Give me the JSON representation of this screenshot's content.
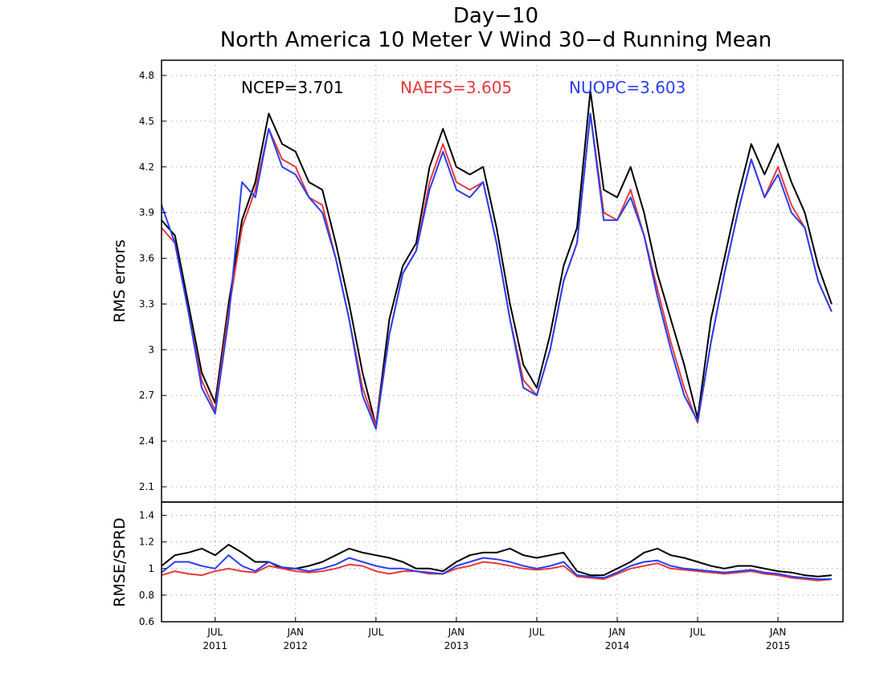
{
  "chart_data": [
    {
      "type": "line",
      "title": "Day−10",
      "subtitle": "North America 10 Meter V Wind 30−d Running Mean",
      "xlabel": "",
      "ylabel": "RMS errors",
      "ylim": [
        2.0,
        4.9
      ],
      "yticks": [
        2.1,
        2.4,
        2.7,
        3.0,
        3.3,
        3.6,
        3.9,
        4.2,
        4.5,
        4.8
      ],
      "ytick_labels": [
        "2.1",
        "2.4",
        "2.7",
        "3",
        "3.3",
        "3.6",
        "3.9",
        "4.2",
        "4.5",
        "4.8"
      ],
      "grid": true,
      "legend_position": "top",
      "x": [
        "2011-03",
        "2011-04",
        "2011-05",
        "2011-06",
        "2011-07",
        "2011-08",
        "2011-09",
        "2011-10",
        "2011-11",
        "2011-12",
        "2012-01",
        "2012-02",
        "2012-03",
        "2012-04",
        "2012-05",
        "2012-06",
        "2012-07",
        "2012-08",
        "2012-09",
        "2012-10",
        "2012-11",
        "2012-12",
        "2013-01",
        "2013-02",
        "2013-03",
        "2013-04",
        "2013-05",
        "2013-06",
        "2013-07",
        "2013-08",
        "2013-09",
        "2013-10",
        "2013-11",
        "2013-12",
        "2014-01",
        "2014-02",
        "2014-03",
        "2014-04",
        "2014-05",
        "2014-06",
        "2014-07",
        "2014-08",
        "2014-09",
        "2014-10",
        "2014-11",
        "2014-12",
        "2015-01",
        "2015-02",
        "2015-03",
        "2015-04",
        "2015-05"
      ],
      "series": [
        {
          "name": "NCEP",
          "label": "NCEP=3.701",
          "color": "#000000",
          "values": [
            3.85,
            3.75,
            3.3,
            2.85,
            2.65,
            3.3,
            3.85,
            4.1,
            4.55,
            4.35,
            4.3,
            4.1,
            4.05,
            3.7,
            3.3,
            2.85,
            2.5,
            3.2,
            3.55,
            3.7,
            4.2,
            4.45,
            4.2,
            4.15,
            4.2,
            3.8,
            3.3,
            2.9,
            2.75,
            3.1,
            3.55,
            3.8,
            4.7,
            4.05,
            4.0,
            4.2,
            3.9,
            3.5,
            3.2,
            2.9,
            2.55,
            3.2,
            3.6,
            4.0,
            4.35,
            4.15,
            4.35,
            4.1,
            3.9,
            3.55,
            3.3
          ]
        },
        {
          "name": "NAEFS",
          "label": "NAEFS=3.605",
          "color": "#e8383b",
          "values": [
            3.8,
            3.7,
            3.25,
            2.8,
            2.6,
            3.25,
            3.8,
            4.05,
            4.45,
            4.25,
            4.2,
            4.0,
            3.95,
            3.6,
            3.2,
            2.75,
            2.5,
            3.1,
            3.5,
            3.65,
            4.1,
            4.35,
            4.1,
            4.05,
            4.1,
            3.7,
            3.2,
            2.8,
            2.7,
            3.0,
            3.45,
            3.7,
            4.55,
            3.9,
            3.85,
            4.05,
            3.75,
            3.4,
            3.05,
            2.75,
            2.52,
            3.05,
            3.5,
            3.9,
            4.25,
            4.0,
            4.2,
            3.95,
            3.8,
            3.45,
            3.25
          ]
        },
        {
          "name": "NUOPC",
          "label": "NUOPC=3.603",
          "color": "#2a3ef0",
          "values": [
            3.95,
            3.7,
            3.25,
            2.75,
            2.58,
            3.2,
            4.1,
            4.0,
            4.45,
            4.2,
            4.15,
            4.0,
            3.9,
            3.6,
            3.2,
            2.7,
            2.48,
            3.1,
            3.5,
            3.65,
            4.05,
            4.3,
            4.05,
            4.0,
            4.1,
            3.7,
            3.2,
            2.75,
            2.7,
            3.0,
            3.45,
            3.7,
            4.55,
            3.85,
            3.85,
            4.0,
            3.75,
            3.35,
            3.0,
            2.7,
            2.53,
            3.05,
            3.5,
            3.9,
            4.25,
            4.0,
            4.15,
            3.9,
            3.8,
            3.45,
            3.25
          ]
        }
      ]
    },
    {
      "type": "line",
      "xlabel": "",
      "ylabel": "RMSE/SPRD",
      "ylim": [
        0.6,
        1.5
      ],
      "yticks": [
        0.6,
        0.8,
        1.0,
        1.2,
        1.4
      ],
      "ytick_labels": [
        "0.6",
        "0.8",
        "1",
        "1.2",
        "1.4"
      ],
      "grid": true,
      "x": [
        "2011-03",
        "2011-04",
        "2011-05",
        "2011-06",
        "2011-07",
        "2011-08",
        "2011-09",
        "2011-10",
        "2011-11",
        "2011-12",
        "2012-01",
        "2012-02",
        "2012-03",
        "2012-04",
        "2012-05",
        "2012-06",
        "2012-07",
        "2012-08",
        "2012-09",
        "2012-10",
        "2012-11",
        "2012-12",
        "2013-01",
        "2013-02",
        "2013-03",
        "2013-04",
        "2013-05",
        "2013-06",
        "2013-07",
        "2013-08",
        "2013-09",
        "2013-10",
        "2013-11",
        "2013-12",
        "2014-01",
        "2014-02",
        "2014-03",
        "2014-04",
        "2014-05",
        "2014-06",
        "2014-07",
        "2014-08",
        "2014-09",
        "2014-10",
        "2014-11",
        "2014-12",
        "2015-01",
        "2015-02",
        "2015-03",
        "2015-04",
        "2015-05"
      ],
      "x_ticks": [
        {
          "month": "JUL",
          "year": "2011",
          "date": "2011-07"
        },
        {
          "month": "JAN",
          "year": "2012",
          "date": "2012-01"
        },
        {
          "month": "JUL",
          "year": "",
          "date": "2012-07"
        },
        {
          "month": "JAN",
          "year": "2013",
          "date": "2013-01"
        },
        {
          "month": "JUL",
          "year": "",
          "date": "2013-07"
        },
        {
          "month": "JAN",
          "year": "2014",
          "date": "2014-01"
        },
        {
          "month": "JUL",
          "year": "",
          "date": "2014-07"
        },
        {
          "month": "JAN",
          "year": "2015",
          "date": "2015-01"
        }
      ],
      "series": [
        {
          "name": "NCEP",
          "color": "#000000",
          "values": [
            1.02,
            1.1,
            1.12,
            1.15,
            1.1,
            1.18,
            1.12,
            1.05,
            1.05,
            1.0,
            1.0,
            1.02,
            1.05,
            1.1,
            1.15,
            1.12,
            1.1,
            1.08,
            1.05,
            1.0,
            1.0,
            0.98,
            1.05,
            1.1,
            1.12,
            1.12,
            1.15,
            1.1,
            1.08,
            1.1,
            1.12,
            0.98,
            0.95,
            0.95,
            1.0,
            1.05,
            1.12,
            1.15,
            1.1,
            1.08,
            1.05,
            1.02,
            1.0,
            1.02,
            1.02,
            1.0,
            0.98,
            0.97,
            0.95,
            0.94,
            0.95
          ]
        },
        {
          "name": "NAEFS",
          "color": "#e8383b",
          "values": [
            0.95,
            0.98,
            0.96,
            0.95,
            0.98,
            1.0,
            0.98,
            0.97,
            1.02,
            1.0,
            0.98,
            0.97,
            0.98,
            1.0,
            1.03,
            1.02,
            0.98,
            0.96,
            0.98,
            0.98,
            0.96,
            0.96,
            1.0,
            1.02,
            1.05,
            1.04,
            1.02,
            1.0,
            0.99,
            1.0,
            1.02,
            0.94,
            0.93,
            0.92,
            0.96,
            1.0,
            1.02,
            1.04,
            1.0,
            0.99,
            0.98,
            0.97,
            0.96,
            0.97,
            0.98,
            0.96,
            0.95,
            0.93,
            0.92,
            0.91,
            0.92
          ]
        },
        {
          "name": "NUOPC",
          "color": "#2a3ef0",
          "values": [
            0.97,
            1.05,
            1.05,
            1.02,
            1.0,
            1.1,
            1.02,
            0.98,
            1.05,
            1.01,
            1.0,
            0.98,
            1.0,
            1.03,
            1.08,
            1.05,
            1.02,
            1.0,
            1.0,
            0.98,
            0.97,
            0.96,
            1.02,
            1.05,
            1.08,
            1.07,
            1.05,
            1.02,
            1.0,
            1.02,
            1.05,
            0.95,
            0.94,
            0.93,
            0.97,
            1.02,
            1.05,
            1.06,
            1.02,
            1.0,
            0.99,
            0.98,
            0.97,
            0.98,
            0.99,
            0.97,
            0.96,
            0.94,
            0.93,
            0.92,
            0.92
          ]
        }
      ]
    }
  ]
}
